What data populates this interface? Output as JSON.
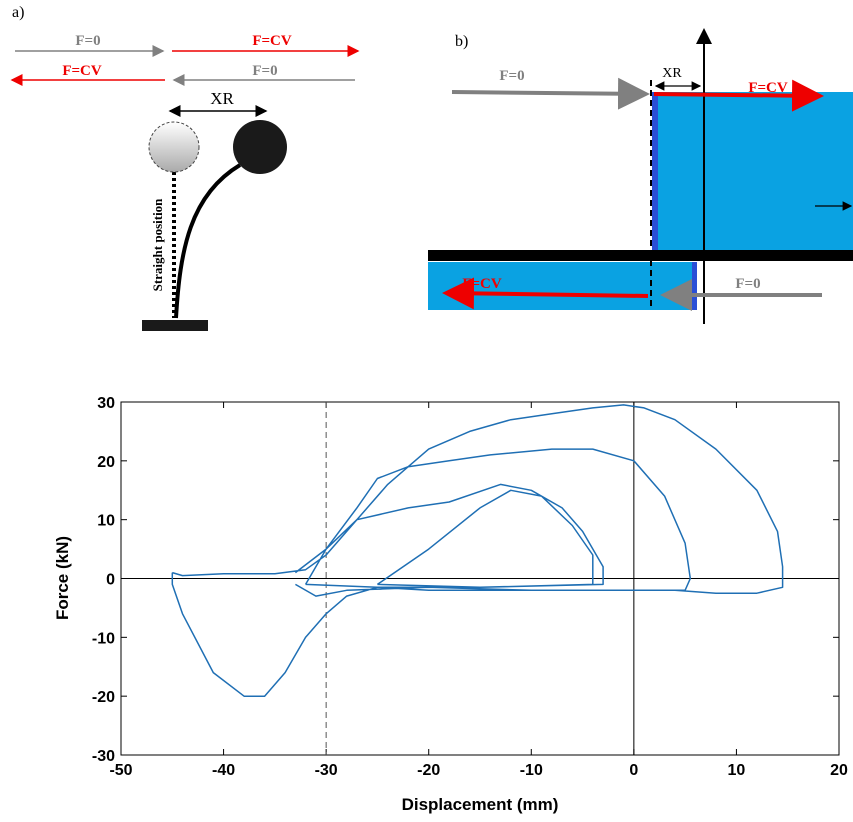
{
  "diagrams": {
    "a": {
      "label": "a)",
      "top_left": "F=0",
      "top_right": "F=CV",
      "bottom_left": "F=CV",
      "bottom_right": "F=0",
      "offset": "XR",
      "straight": "Straight  position"
    },
    "b": {
      "label": "b)",
      "top_left": "F=0",
      "offset": "XR",
      "top_right": "F=CV",
      "bottom_left": "F=CV",
      "bottom_right": "F=0"
    }
  },
  "chart_data": {
    "type": "line",
    "xlabel": "Displacement (mm)",
    "ylabel": "Force (kN)",
    "color": "#1f6fb4",
    "xlim": [
      -50,
      20
    ],
    "ylim": [
      -30,
      30
    ],
    "xticks": [
      -50,
      -40,
      -30,
      -20,
      -10,
      0,
      10,
      20
    ],
    "yticks": [
      -30,
      -20,
      -10,
      0,
      10,
      20,
      30
    ],
    "xlines": [
      {
        "value": -30,
        "style": "dashed"
      },
      {
        "value": 0,
        "style": "solid"
      }
    ],
    "ylines": [
      0
    ],
    "x": [
      -45,
      -44,
      -40,
      -35,
      -32,
      -30,
      -28,
      -26,
      -24,
      -22,
      -20,
      -16,
      -12,
      -8,
      -4,
      -1,
      1,
      4,
      8,
      12,
      14,
      14.5,
      14.5,
      12,
      8,
      4,
      0,
      -10,
      -20,
      -25,
      -28,
      -30,
      -32,
      -34,
      -36,
      -38,
      -41,
      -44,
      -45,
      -45,
      null,
      -33,
      -30,
      -27,
      -25,
      -22,
      -18,
      -14,
      -8,
      -4,
      0,
      3,
      5,
      5.5,
      5,
      0,
      -10,
      -20,
      -28,
      -31,
      -33,
      null,
      -32,
      -30,
      -27,
      -22,
      -18,
      -13,
      -10,
      -7,
      -5,
      -3,
      -3,
      -15,
      -25,
      -32,
      null,
      -25,
      -20,
      -15,
      -12,
      -9,
      -6,
      -4,
      -4,
      -15,
      -25
    ],
    "values": [
      1,
      0.5,
      0.8,
      0.8,
      1.5,
      4,
      8,
      12,
      16,
      19,
      22,
      25,
      27,
      28,
      29,
      29.5,
      29,
      27,
      22,
      15,
      8,
      2,
      -1.5,
      -2.5,
      -2.5,
      -2,
      -2,
      -2,
      -2,
      -1.5,
      -3,
      -6,
      -10,
      -16,
      -20,
      -20,
      -16,
      -6,
      -1,
      1,
      null,
      1,
      5,
      12,
      17,
      19,
      20,
      21,
      22,
      22,
      20,
      14,
      6,
      0,
      -2,
      -2,
      -2,
      -1.5,
      -2,
      -3,
      -1,
      null,
      -1,
      5,
      10,
      12,
      13,
      16,
      15,
      12,
      8,
      2,
      -1,
      -1.5,
      -1.5,
      -1,
      null,
      -1,
      5,
      12,
      15,
      14,
      9,
      4,
      -1,
      -1.5,
      -1
    ]
  }
}
